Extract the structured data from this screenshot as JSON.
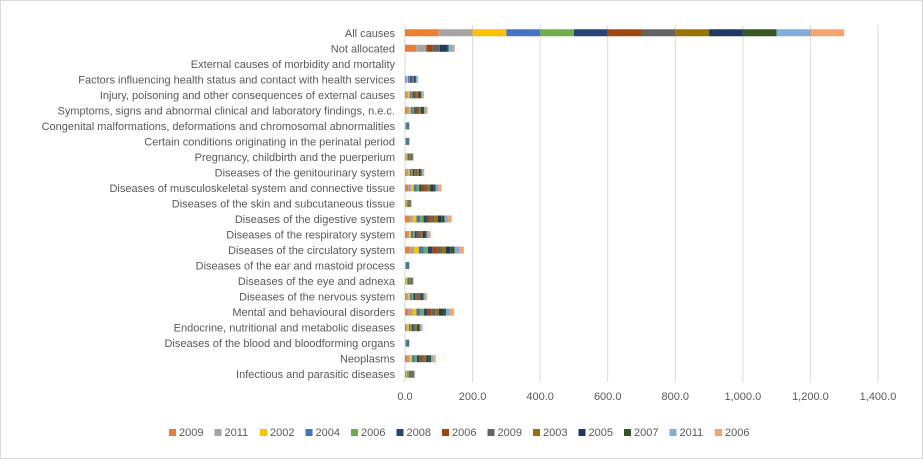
{
  "chart_data": {
    "type": "bar",
    "orientation": "horizontal",
    "stacked": true,
    "categories": [
      "All causes",
      "Not allocated",
      "External causes of morbidity and mortality",
      "Factors influencing health status and contact with health services",
      "Injury, poisoning and other consequences of external causes",
      "Symptoms, signs and abnormal clinical and laboratory findings, n.e.c.",
      "Congenital malformations, deformations and chromosomal abnormalities",
      "Certain conditions originating in the perinatal period",
      "Pregnancy, childbirth and the puerperium",
      "Diseases of the genitourinary system",
      "Diseases of musculoskeletal system and connective tissue",
      "Diseases of the skin and subcutaneous tissue",
      "Diseases of the digestive system",
      "Diseases of the respiratory system",
      "Diseases of the circulatory system",
      "Diseases of the ear and mastoid process",
      "Diseases of the eye and adnexa",
      "Diseases of the nervous system",
      "Mental and behavioural disorders",
      "Endocrine, nutritional and metabolic diseases",
      "Diseases of the blood and bloodforming organs",
      "Neoplasms",
      "Infectious and parasitic diseases"
    ],
    "series": [
      {
        "name": "2009",
        "color": "#ED7D31",
        "values": [
          100,
          33,
          0,
          3,
          5,
          6,
          1,
          1,
          2,
          5,
          9,
          2,
          12,
          6,
          14,
          1,
          2,
          5,
          11,
          4,
          1,
          7,
          3
        ]
      },
      {
        "name": "2011",
        "color": "#A5A5A5",
        "values": [
          100,
          30,
          0,
          3,
          4,
          6,
          1,
          1,
          2,
          4,
          9,
          1,
          11,
          6,
          13,
          1,
          2,
          5,
          11,
          4,
          1,
          7,
          2
        ]
      },
      {
        "name": "2002",
        "color": "#FFC000",
        "values": [
          100,
          0,
          0,
          3,
          5,
          5,
          1,
          1,
          2,
          5,
          8,
          2,
          11,
          6,
          14,
          1,
          2,
          5,
          12,
          4,
          1,
          7,
          2
        ]
      },
      {
        "name": "2004",
        "color": "#4472C4",
        "values": [
          100,
          0,
          0,
          3,
          4,
          5,
          1,
          1,
          2,
          5,
          8,
          1,
          11,
          6,
          14,
          1,
          2,
          5,
          11,
          4,
          1,
          7,
          2
        ]
      },
      {
        "name": "2006",
        "color": "#70AD47",
        "values": [
          100,
          0,
          0,
          3,
          4,
          5,
          1,
          1,
          2,
          4,
          8,
          2,
          10,
          5,
          13,
          1,
          2,
          5,
          11,
          4,
          1,
          7,
          3
        ]
      },
      {
        "name": "2008",
        "color": "#264478",
        "values": [
          100,
          0,
          0,
          3,
          4,
          5,
          1,
          1,
          2,
          4,
          8,
          1,
          10,
          6,
          13,
          1,
          2,
          5,
          11,
          4,
          1,
          7,
          2
        ]
      },
      {
        "name": "2006",
        "color": "#9E480E",
        "values": [
          100,
          18,
          0,
          3,
          5,
          5,
          1,
          1,
          2,
          5,
          9,
          2,
          11,
          6,
          14,
          1,
          2,
          5,
          11,
          4,
          1,
          7,
          2
        ]
      },
      {
        "name": "2009",
        "color": "#636363",
        "values": [
          100,
          22,
          0,
          3,
          4,
          5,
          1,
          1,
          2,
          4,
          8,
          1,
          10,
          6,
          13,
          1,
          2,
          5,
          11,
          4,
          1,
          7,
          3
        ]
      },
      {
        "name": "2003",
        "color": "#997300",
        "values": [
          100,
          0,
          0,
          3,
          5,
          5,
          1,
          1,
          2,
          5,
          8,
          2,
          11,
          6,
          13,
          1,
          2,
          5,
          11,
          4,
          1,
          7,
          2
        ]
      },
      {
        "name": "2005",
        "color": "#203864",
        "values": [
          100,
          20,
          0,
          3,
          4,
          5,
          1,
          1,
          2,
          4,
          8,
          1,
          10,
          6,
          13,
          1,
          2,
          5,
          11,
          4,
          1,
          7,
          2
        ]
      },
      {
        "name": "2007",
        "color": "#375623",
        "values": [
          100,
          6,
          0,
          3,
          4,
          5,
          1,
          1,
          2,
          4,
          8,
          2,
          10,
          5,
          13,
          1,
          2,
          5,
          11,
          4,
          1,
          7,
          3
        ]
      },
      {
        "name": "2011",
        "color": "#7FAEDC",
        "values": [
          100,
          14,
          0,
          3,
          4,
          5,
          1,
          1,
          2,
          4,
          8,
          1,
          10,
          6,
          13,
          1,
          2,
          5,
          11,
          4,
          1,
          7,
          2
        ]
      },
      {
        "name": "2006",
        "color": "#F4A46C",
        "values": [
          100,
          5,
          0,
          3,
          4,
          5,
          1,
          1,
          2,
          4,
          9,
          2,
          11,
          6,
          14,
          1,
          2,
          5,
          12,
          4,
          1,
          7,
          2
        ]
      }
    ],
    "xlim": [
      0,
      1400
    ],
    "xticks": [
      0,
      200,
      400,
      600,
      800,
      1000,
      1200,
      1400
    ],
    "xtick_labels": [
      "0.0",
      "200.0",
      "400.0",
      "600.0",
      "800.0",
      "1,000.0",
      "1,200.0",
      "1,400.0"
    ],
    "grid": true,
    "legend_position": "bottom",
    "title": "",
    "xlabel": "",
    "ylabel": ""
  }
}
